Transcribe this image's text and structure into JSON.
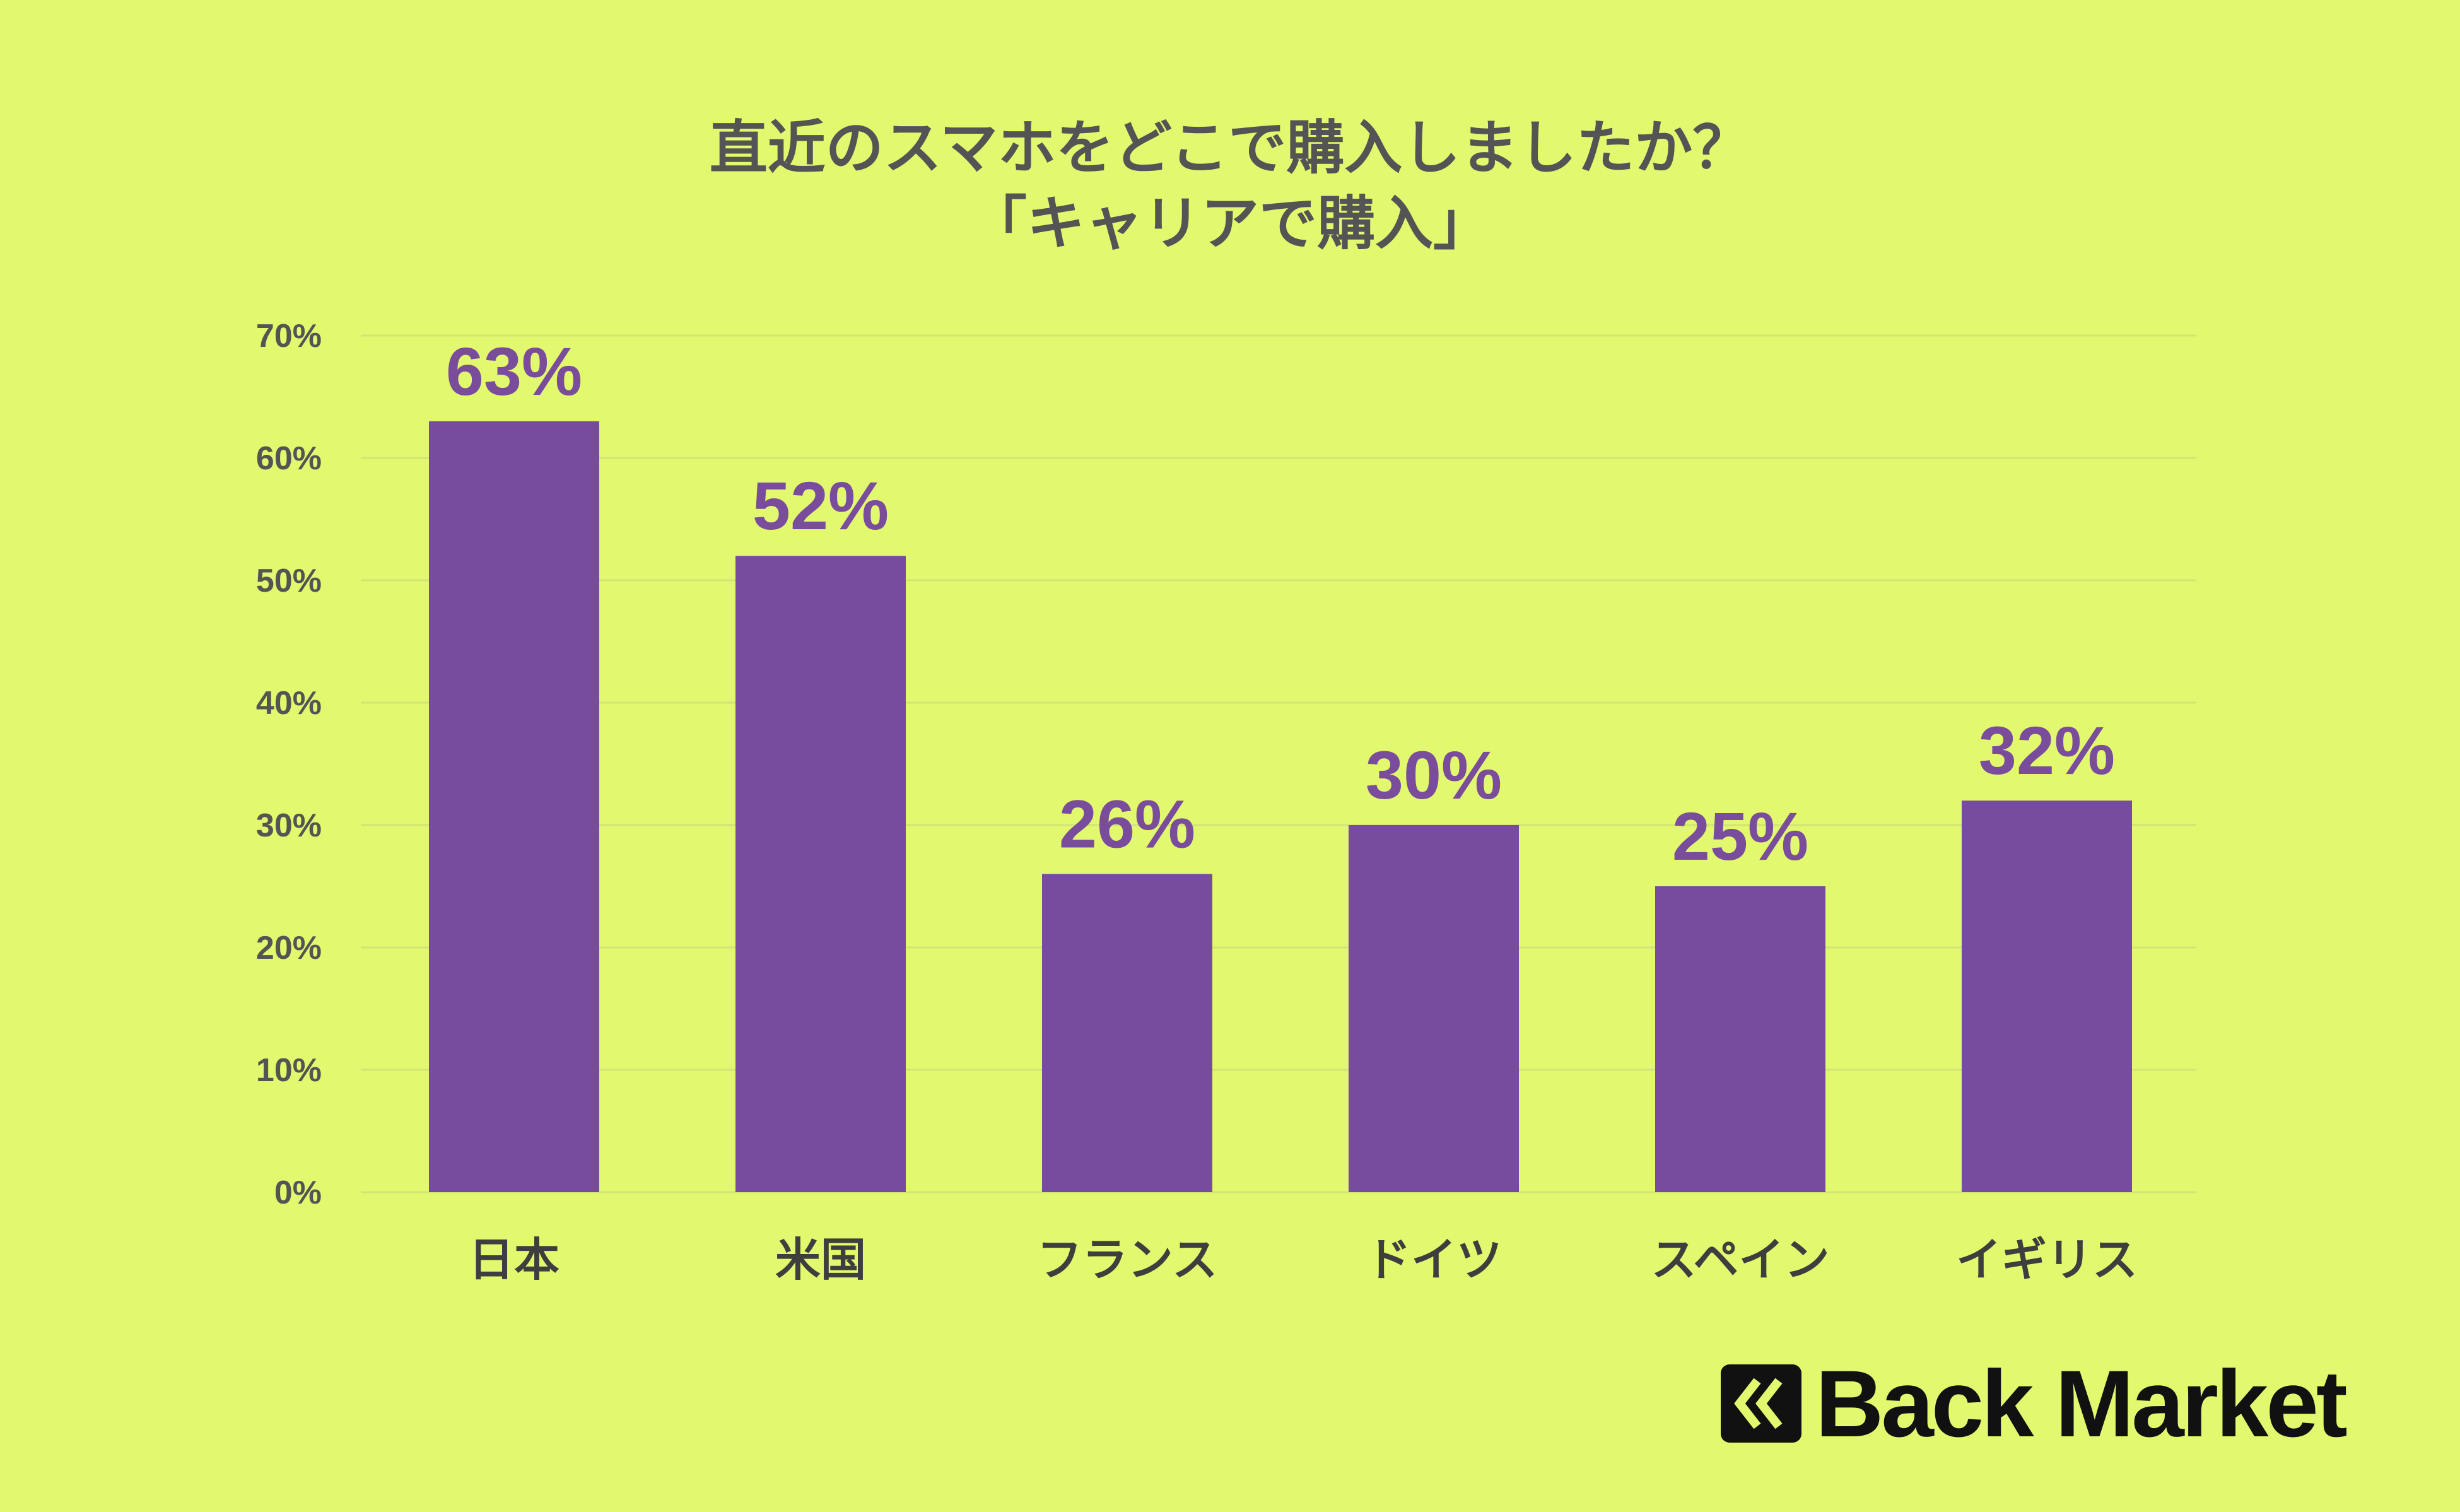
{
  "title": {
    "line1": "直近のスマホをどこで購入しましたか？",
    "line2": "「キャリアで購入」"
  },
  "colors": {
    "background": "#e2f86f",
    "bar": "#774c9e",
    "data_label": "#7a4c9c",
    "gridline": "#d2e474",
    "text": "#545454"
  },
  "logo": {
    "text": "Back Market",
    "icon": "back-market-chevron-icon"
  },
  "chart_data": {
    "type": "bar",
    "categories": [
      "日本",
      "米国",
      "フランス",
      "ドイツ",
      "スペイン",
      "イギリス"
    ],
    "values": [
      63,
      52,
      26,
      30,
      25,
      32
    ],
    "data_labels": [
      "63%",
      "52%",
      "26%",
      "30%",
      "25%",
      "32%"
    ],
    "ylim": [
      0,
      70
    ],
    "yticks": [
      0,
      10,
      20,
      30,
      40,
      50,
      60,
      70
    ],
    "ytick_labels": [
      "0%",
      "10%",
      "20%",
      "30%",
      "40%",
      "50%",
      "60%",
      "70%"
    ],
    "grid": true,
    "legend": "none",
    "xlabel": "",
    "ylabel": ""
  }
}
